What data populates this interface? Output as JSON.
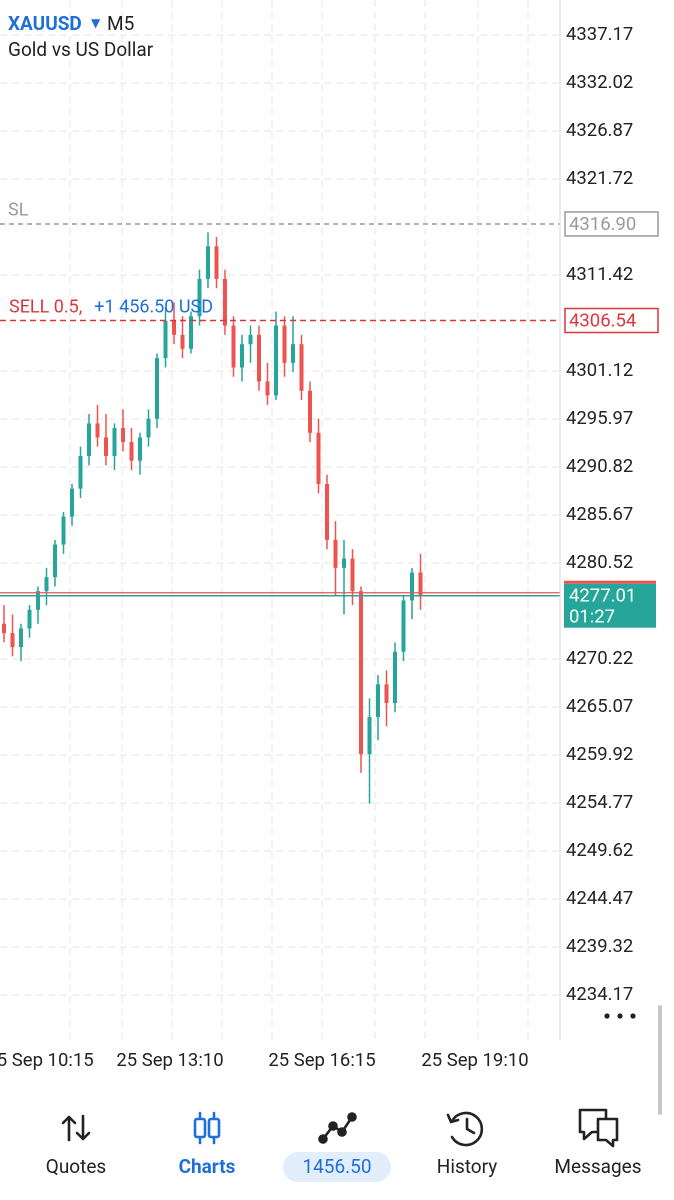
{
  "header": {
    "symbol": "XAUUSD",
    "timeframe": "M5",
    "description": "Gold vs US Dollar"
  },
  "chart_data": {
    "type": "candlestick",
    "ylim": [
      4229.34,
      4340.93
    ],
    "yticks": [
      4337.17,
      4332.02,
      4326.87,
      4321.72,
      4311.42,
      4301.12,
      4295.97,
      4290.82,
      4285.67,
      4280.52,
      4270.22,
      4265.07,
      4259.92,
      4254.77,
      4249.62,
      4244.47,
      4239.32,
      4234.17
    ],
    "grid": true,
    "up_color": "#26a69a",
    "down_color": "#ef5350",
    "time_labels": [
      "25 Sep 10:15",
      "25 Sep 13:10",
      "25 Sep 16:15",
      "25 Sep 19:10"
    ],
    "candles": [
      {
        "open": 4274,
        "high": 4276,
        "low": 4272,
        "close": 4273
      },
      {
        "open": 4273,
        "high": 4275,
        "low": 4270.5,
        "close": 4271.5
      },
      {
        "open": 4271.5,
        "high": 4274,
        "low": 4270,
        "close": 4273.5
      },
      {
        "open": 4273.5,
        "high": 4276,
        "low": 4272.5,
        "close": 4275.5
      },
      {
        "open": 4275.5,
        "high": 4278,
        "low": 4274,
        "close": 4277.5
      },
      {
        "open": 4277.5,
        "high": 4280,
        "low": 4276,
        "close": 4279
      },
      {
        "open": 4279,
        "high": 4283,
        "low": 4278,
        "close": 4282.5
      },
      {
        "open": 4282.5,
        "high": 4286,
        "low": 4281.5,
        "close": 4285.5
      },
      {
        "open": 4285.5,
        "high": 4289,
        "low": 4284.5,
        "close": 4288.5
      },
      {
        "open": 4288.5,
        "high": 4293,
        "low": 4287.5,
        "close": 4292
      },
      {
        "open": 4292,
        "high": 4296.5,
        "low": 4291,
        "close": 4295.5
      },
      {
        "open": 4295.5,
        "high": 4297.5,
        "low": 4293,
        "close": 4294
      },
      {
        "open": 4294,
        "high": 4296.5,
        "low": 4291,
        "close": 4292
      },
      {
        "open": 4292,
        "high": 4295.5,
        "low": 4290.5,
        "close": 4295
      },
      {
        "open": 4295,
        "high": 4297,
        "low": 4292.5,
        "close": 4293.5
      },
      {
        "open": 4293.5,
        "high": 4295,
        "low": 4290.5,
        "close": 4291.5
      },
      {
        "open": 4291.5,
        "high": 4294.5,
        "low": 4290,
        "close": 4294
      },
      {
        "open": 4294,
        "high": 4297,
        "low": 4293,
        "close": 4296
      },
      {
        "open": 4296,
        "high": 4303,
        "low": 4295,
        "close": 4302.5
      },
      {
        "open": 4302.5,
        "high": 4308,
        "low": 4301.5,
        "close": 4306.5
      },
      {
        "open": 4306.5,
        "high": 4308.5,
        "low": 4304,
        "close": 4305
      },
      {
        "open": 4305,
        "high": 4307,
        "low": 4302.5,
        "close": 4303.5
      },
      {
        "open": 4303.5,
        "high": 4307.5,
        "low": 4303,
        "close": 4307
      },
      {
        "open": 4307,
        "high": 4312,
        "low": 4306,
        "close": 4311
      },
      {
        "open": 4311,
        "high": 4316,
        "low": 4310,
        "close": 4314.5
      },
      {
        "open": 4314.5,
        "high": 4315.5,
        "low": 4310,
        "close": 4311
      },
      {
        "open": 4311,
        "high": 4312,
        "low": 4305,
        "close": 4306
      },
      {
        "open": 4306,
        "high": 4307,
        "low": 4300.5,
        "close": 4301.5
      },
      {
        "open": 4301.5,
        "high": 4305,
        "low": 4300,
        "close": 4304
      },
      {
        "open": 4304,
        "high": 4306,
        "low": 4302,
        "close": 4305
      },
      {
        "open": 4305,
        "high": 4306,
        "low": 4299,
        "close": 4300
      },
      {
        "open": 4300,
        "high": 4302,
        "low": 4297.5,
        "close": 4298.5
      },
      {
        "open": 4298.5,
        "high": 4307.5,
        "low": 4298,
        "close": 4306
      },
      {
        "open": 4306,
        "high": 4307,
        "low": 4300.5,
        "close": 4302
      },
      {
        "open": 4302,
        "high": 4307,
        "low": 4301,
        "close": 4304
      },
      {
        "open": 4304,
        "high": 4305,
        "low": 4298,
        "close": 4299
      },
      {
        "open": 4299,
        "high": 4300,
        "low": 4293.5,
        "close": 4294.5
      },
      {
        "open": 4294.5,
        "high": 4296,
        "low": 4288,
        "close": 4289
      },
      {
        "open": 4289,
        "high": 4290,
        "low": 4282,
        "close": 4283
      },
      {
        "open": 4283,
        "high": 4285,
        "low": 4277,
        "close": 4280
      },
      {
        "open": 4280,
        "high": 4283,
        "low": 4275,
        "close": 4281
      },
      {
        "open": 4281,
        "high": 4282,
        "low": 4276,
        "close": 4277.5
      },
      {
        "open": 4277.5,
        "high": 4278,
        "low": 4258,
        "close": 4260
      },
      {
        "open": 4260,
        "high": 4266,
        "low": 4254.7,
        "close": 4264
      },
      {
        "open": 4264,
        "high": 4268.5,
        "low": 4261.5,
        "close": 4267.5
      },
      {
        "open": 4267.5,
        "high": 4269,
        "low": 4263,
        "close": 4265.5
      },
      {
        "open": 4265.5,
        "high": 4272,
        "low": 4264.5,
        "close": 4271
      },
      {
        "open": 4271,
        "high": 4277,
        "low": 4270,
        "close": 4276.5
      },
      {
        "open": 4276.5,
        "high": 4280,
        "low": 4274.5,
        "close": 4279.5
      },
      {
        "open": 4279.5,
        "high": 4281.5,
        "low": 4275.5,
        "close": 4277.01
      }
    ],
    "sl_line": {
      "label": "SL",
      "price": {
        "value": 4316.9,
        "label": "4316.90"
      }
    },
    "order_line": {
      "label": "SELL 0.5,",
      "profit": "+1 456.50 USD",
      "price": 4306.54
    },
    "current_price": {
      "price": 4277.01,
      "timer": "01:27"
    }
  },
  "nav": {
    "items": [
      "Quotes",
      "Charts",
      "1456.50",
      "History",
      "Messages"
    ]
  }
}
